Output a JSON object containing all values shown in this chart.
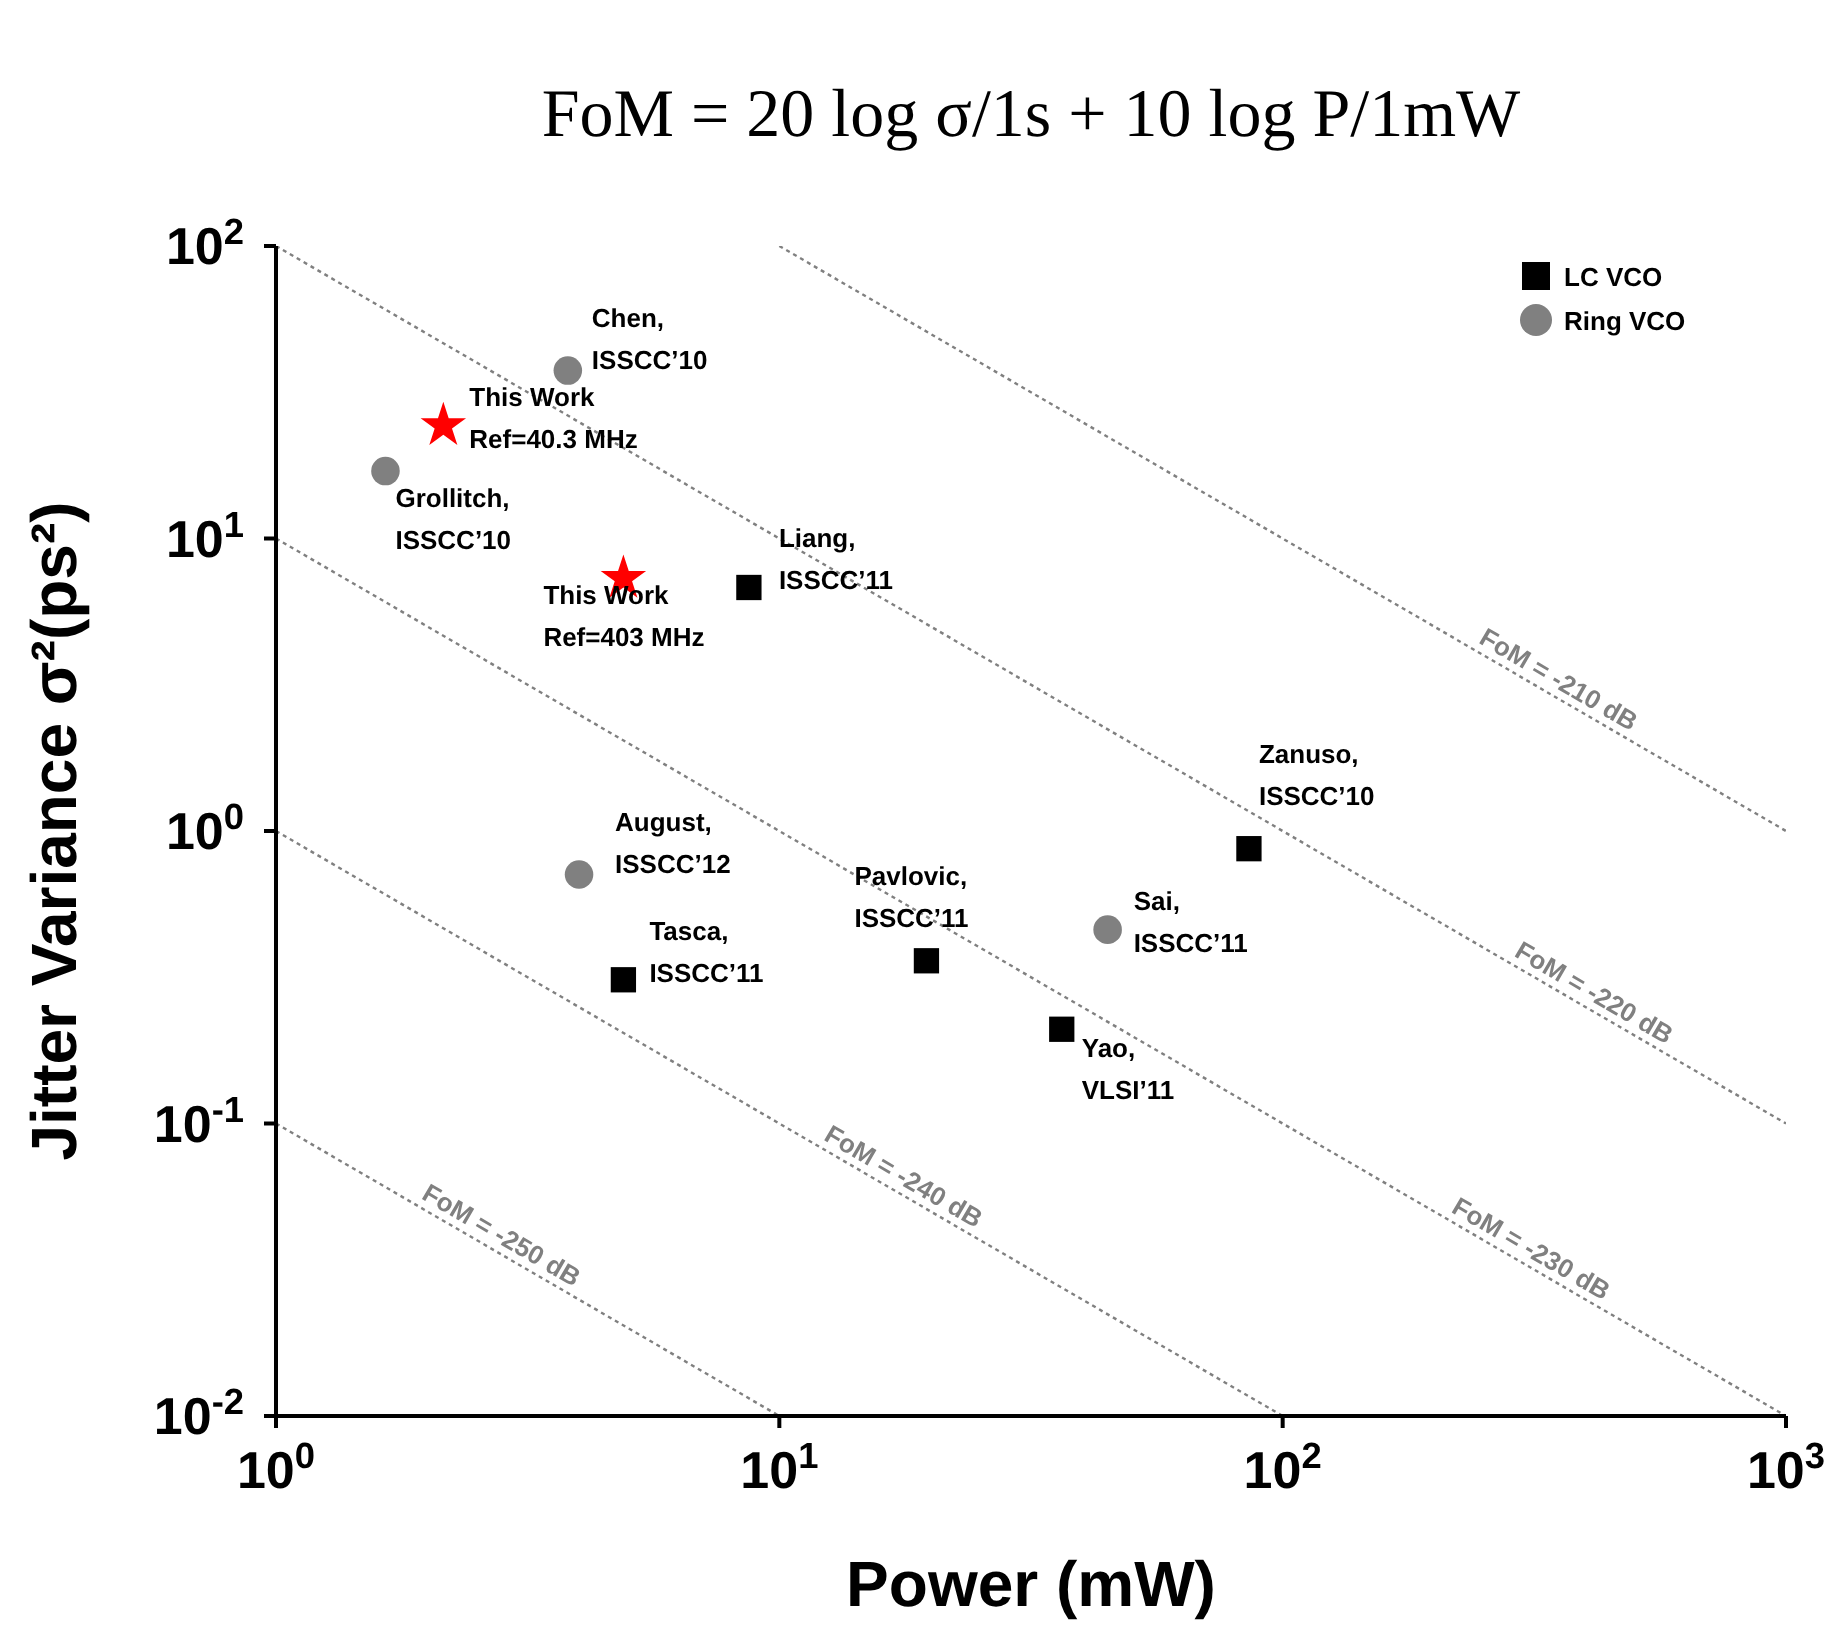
{
  "chart_data": {
    "type": "scatter",
    "title": "FoM = 20 log σ/1s + 10 log P/1mW",
    "xlabel": "Power (mW)",
    "ylabel": "Jitter Variance σ²(ps²)",
    "log": "xy",
    "xlim": [
      1,
      1000
    ],
    "ylim": [
      0.01,
      100
    ],
    "xticks": [
      {
        "value": 1,
        "label": "10$^{0}$"
      },
      {
        "value": 10,
        "label": "10$^{1}$"
      },
      {
        "value": 100,
        "label": "10$^{2}$"
      },
      {
        "value": 1000,
        "label": "10$^{3}$"
      }
    ],
    "yticks": [
      {
        "value": 0.01,
        "label": "10$^{-2}$"
      },
      {
        "value": 0.1,
        "label": "10$^{-1}$"
      },
      {
        "value": 1,
        "label": "10$^{0}$"
      },
      {
        "value": 10,
        "label": "10$^{1}$"
      },
      {
        "value": 100,
        "label": "10$^{2}$"
      }
    ],
    "grid": false,
    "legend": "top right",
    "series": [
      {
        "name": "LC VCO",
        "type": "scatter",
        "marker": "square",
        "color": "#000000",
        "x": [
          8.7,
          85.7,
          19.6,
          36.4,
          4.9
        ],
        "values": [
          6.8,
          0.87,
          0.36,
          0.21,
          0.31
        ]
      },
      {
        "name": "Ring VCO",
        "type": "scatter",
        "marker": "circle",
        "color": "#808080",
        "x": [
          3.8,
          1.65,
          4.0,
          44.9
        ],
        "values": [
          37.5,
          17,
          0.71,
          0.46
        ]
      },
      {
        "type": "scatter",
        "marker": "star",
        "color": "#ff0000",
        "x": [
          2.15,
          4.9
        ],
        "values": [
          24.3,
          7.3
        ]
      },
      {
        "name": "FoM = -210 dB",
        "type": "line",
        "line_style": "dotted",
        "color": "#808080",
        "x": [
          10,
          1000
        ],
        "values": [
          100,
          1
        ]
      },
      {
        "name": "FoM = -220 dB",
        "type": "line",
        "line_style": "dotted",
        "color": "#808080",
        "x": [
          1,
          1000
        ],
        "values": [
          100,
          0.1
        ]
      },
      {
        "name": "FoM = -230 dB",
        "type": "line",
        "line_style": "dotted",
        "color": "#808080",
        "x": [
          1,
          1000
        ],
        "values": [
          10,
          0.01
        ]
      },
      {
        "name": "FoM = -240 dB",
        "type": "line",
        "line_style": "dotted",
        "color": "#808080",
        "x": [
          1,
          100
        ],
        "values": [
          1,
          0.01
        ]
      },
      {
        "name": "FoM = -250 dB",
        "type": "line",
        "line_style": "dotted",
        "color": "#808080",
        "x": [
          1,
          10
        ],
        "values": [
          0.1,
          0.01
        ]
      }
    ],
    "annotations": [
      {
        "text": "Chen,\nISSCC’10",
        "x": 3.8,
        "y": 37.5
      },
      {
        "text": "This Work\nRef=40.3 MHz",
        "x": 2.15,
        "y": 24.3
      },
      {
        "text": "Grollitch,\nISSCC’10",
        "x": 1.65,
        "y": 17
      },
      {
        "text": "This Work\nRef=403 MHz",
        "x": 4.9,
        "y": 7.3
      },
      {
        "text": "Liang,\nISSCC’11",
        "x": 8.7,
        "y": 6.8
      },
      {
        "text": "August,\nISSCC’12",
        "x": 4.0,
        "y": 0.71
      },
      {
        "text": "Tasca,\nISSCC’11",
        "x": 4.9,
        "y": 0.31
      },
      {
        "text": "Pavlovic,\nISSCC’11",
        "x": 19.6,
        "y": 0.36
      },
      {
        "text": "Sai,\nISSCC’11",
        "x": 44.9,
        "y": 0.46
      },
      {
        "text": "Yao,\nVLSI’11",
        "x": 36.4,
        "y": 0.21
      },
      {
        "text": "Zanuso,\nISSCC’10",
        "x": 85.7,
        "y": 0.87
      }
    ]
  }
}
